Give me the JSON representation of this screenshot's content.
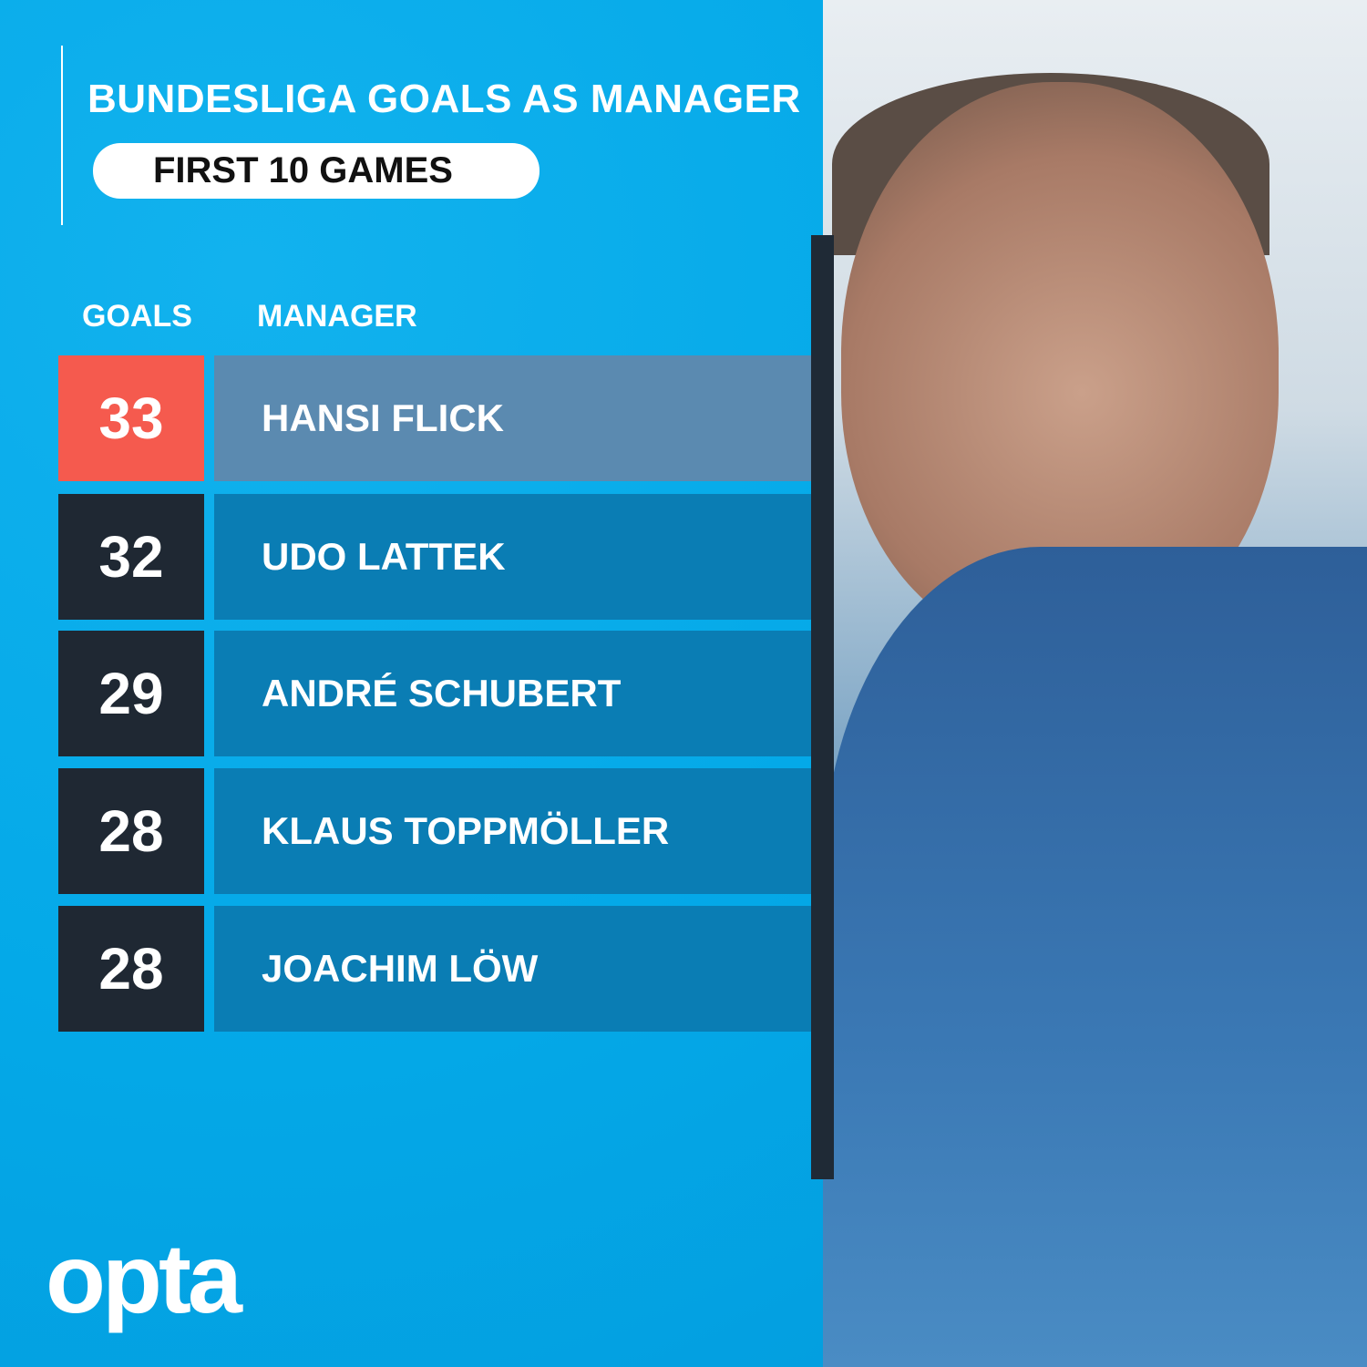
{
  "title": "BUNDESLIGA GOALS AS MANAGER",
  "subtitle": "FIRST 10 GAMES",
  "headers": {
    "goals": "GOALS",
    "manager": "MANAGER"
  },
  "colors": {
    "background": "#04a9e8",
    "highlight_goal": "#f55a4e",
    "highlight_name": "#5b8ab0",
    "goal_box": "#1f2833",
    "name_box": "#0a7db4"
  },
  "chart_data": {
    "type": "table",
    "title": "BUNDESLIGA GOALS AS MANAGER",
    "subtitle": "FIRST 10 GAMES",
    "columns": [
      "GOALS",
      "MANAGER"
    ],
    "rows": [
      {
        "goals": "33",
        "manager": "HANSI FLICK",
        "highlight": true
      },
      {
        "goals": "32",
        "manager": "UDO LATTEK",
        "highlight": false
      },
      {
        "goals": "29",
        "manager": "ANDRÉ SCHUBERT",
        "highlight": false
      },
      {
        "goals": "28",
        "manager": "KLAUS TOPPMÖLLER",
        "highlight": false
      },
      {
        "goals": "28",
        "manager": "JOACHIM LÖW",
        "highlight": false
      }
    ]
  },
  "brand": "opta"
}
